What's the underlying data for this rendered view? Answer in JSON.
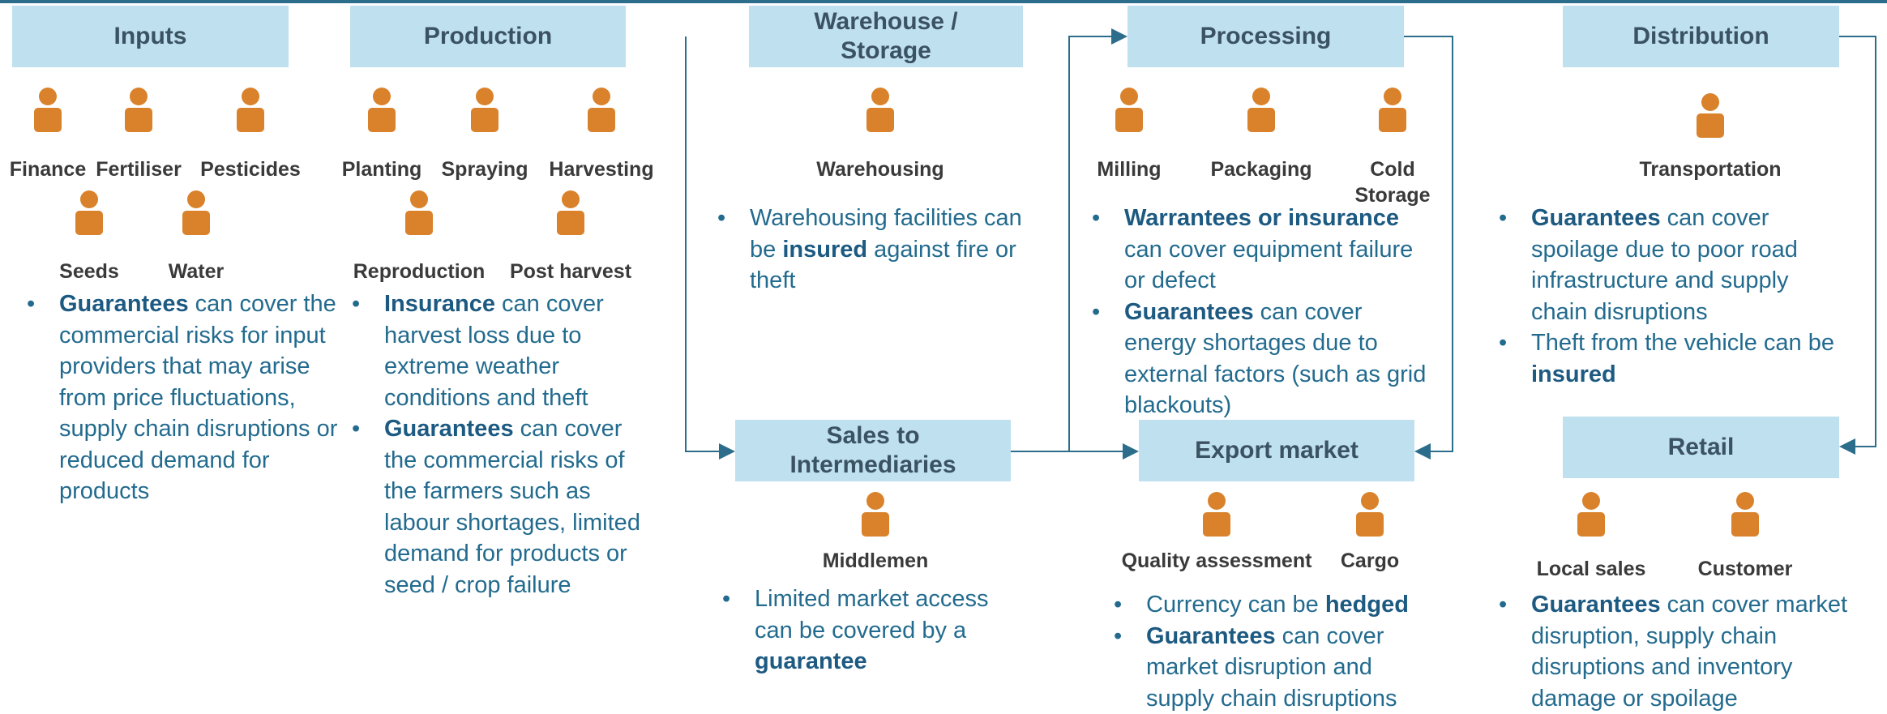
{
  "stages": [
    {
      "title": "Inputs",
      "items": [
        "Finance",
        "Fertiliser",
        "Pesticides",
        "Seeds",
        "Water"
      ],
      "bullets": [
        [
          {
            "text": "Guarantees",
            "bold": true
          },
          {
            "text": " can cover the commercial risks for input providers that may arise from price fluctuations, supply chain disruptions or reduced demand for products",
            "bold": false
          }
        ]
      ]
    },
    {
      "title": "Production",
      "items": [
        "Planting",
        "Spraying",
        "Harvesting",
        "Reproduction",
        "Post harvest"
      ],
      "bullets": [
        [
          {
            "text": "Insurance",
            "bold": true
          },
          {
            "text": " can cover harvest loss due to extreme weather conditions and theft",
            "bold": false
          }
        ],
        [
          {
            "text": "Guarantees",
            "bold": true
          },
          {
            "text": " can cover the commercial risks of the farmers such as labour shortages, limited demand for products or seed / crop failure",
            "bold": false
          }
        ]
      ]
    },
    {
      "title": "Warehouse / Storage",
      "items": [
        "Warehousing"
      ],
      "bullets": [
        [
          {
            "text": "Warehousing facilities can be ",
            "bold": false
          },
          {
            "text": "insured",
            "bold": true
          },
          {
            "text": " against fire or theft",
            "bold": false
          }
        ]
      ]
    },
    {
      "title": "Processing",
      "items": [
        "Milling",
        "Packaging",
        "Cold Storage"
      ],
      "bullets": [
        [
          {
            "text": "Warrantees or insurance",
            "bold": true
          },
          {
            "text": " can cover equipment failure or defect",
            "bold": false
          }
        ],
        [
          {
            "text": "Guarantees",
            "bold": true
          },
          {
            "text": " can cover energy shortages due to external factors (such as grid blackouts)",
            "bold": false
          }
        ]
      ]
    },
    {
      "title": "Distribution",
      "items": [
        "Transportation"
      ],
      "bullets": [
        [
          {
            "text": "Guarantees",
            "bold": true
          },
          {
            "text": " can cover spoilage due to poor road infrastructure and supply chain disruptions",
            "bold": false
          }
        ],
        [
          {
            "text": "Theft from the vehicle can be ",
            "bold": false
          },
          {
            "text": "insured",
            "bold": true
          }
        ]
      ]
    },
    {
      "title": "Sales to Intermediaries",
      "items": [
        "Middlemen"
      ],
      "bullets": [
        [
          {
            "text": "Limited market access can be covered by a ",
            "bold": false
          },
          {
            "text": "guarantee",
            "bold": true
          }
        ]
      ]
    },
    {
      "title": "Export market",
      "items": [
        "Quality assessment",
        "Cargo"
      ],
      "bullets": [
        [
          {
            "text": "Currency can be ",
            "bold": false
          },
          {
            "text": "hedged",
            "bold": true
          }
        ],
        [
          {
            "text": "Guarantees",
            "bold": true
          },
          {
            "text": " can cover market disruption and supply chain disruptions",
            "bold": false
          }
        ]
      ]
    },
    {
      "title": "Retail",
      "items": [
        "Local sales",
        "Customer"
      ],
      "bullets": [
        [
          {
            "text": "Guarantees",
            "bold": true
          },
          {
            "text": " can cover market disruption, supply chain disruptions and inventory damage or spoilage",
            "bold": false
          }
        ]
      ]
    }
  ]
}
